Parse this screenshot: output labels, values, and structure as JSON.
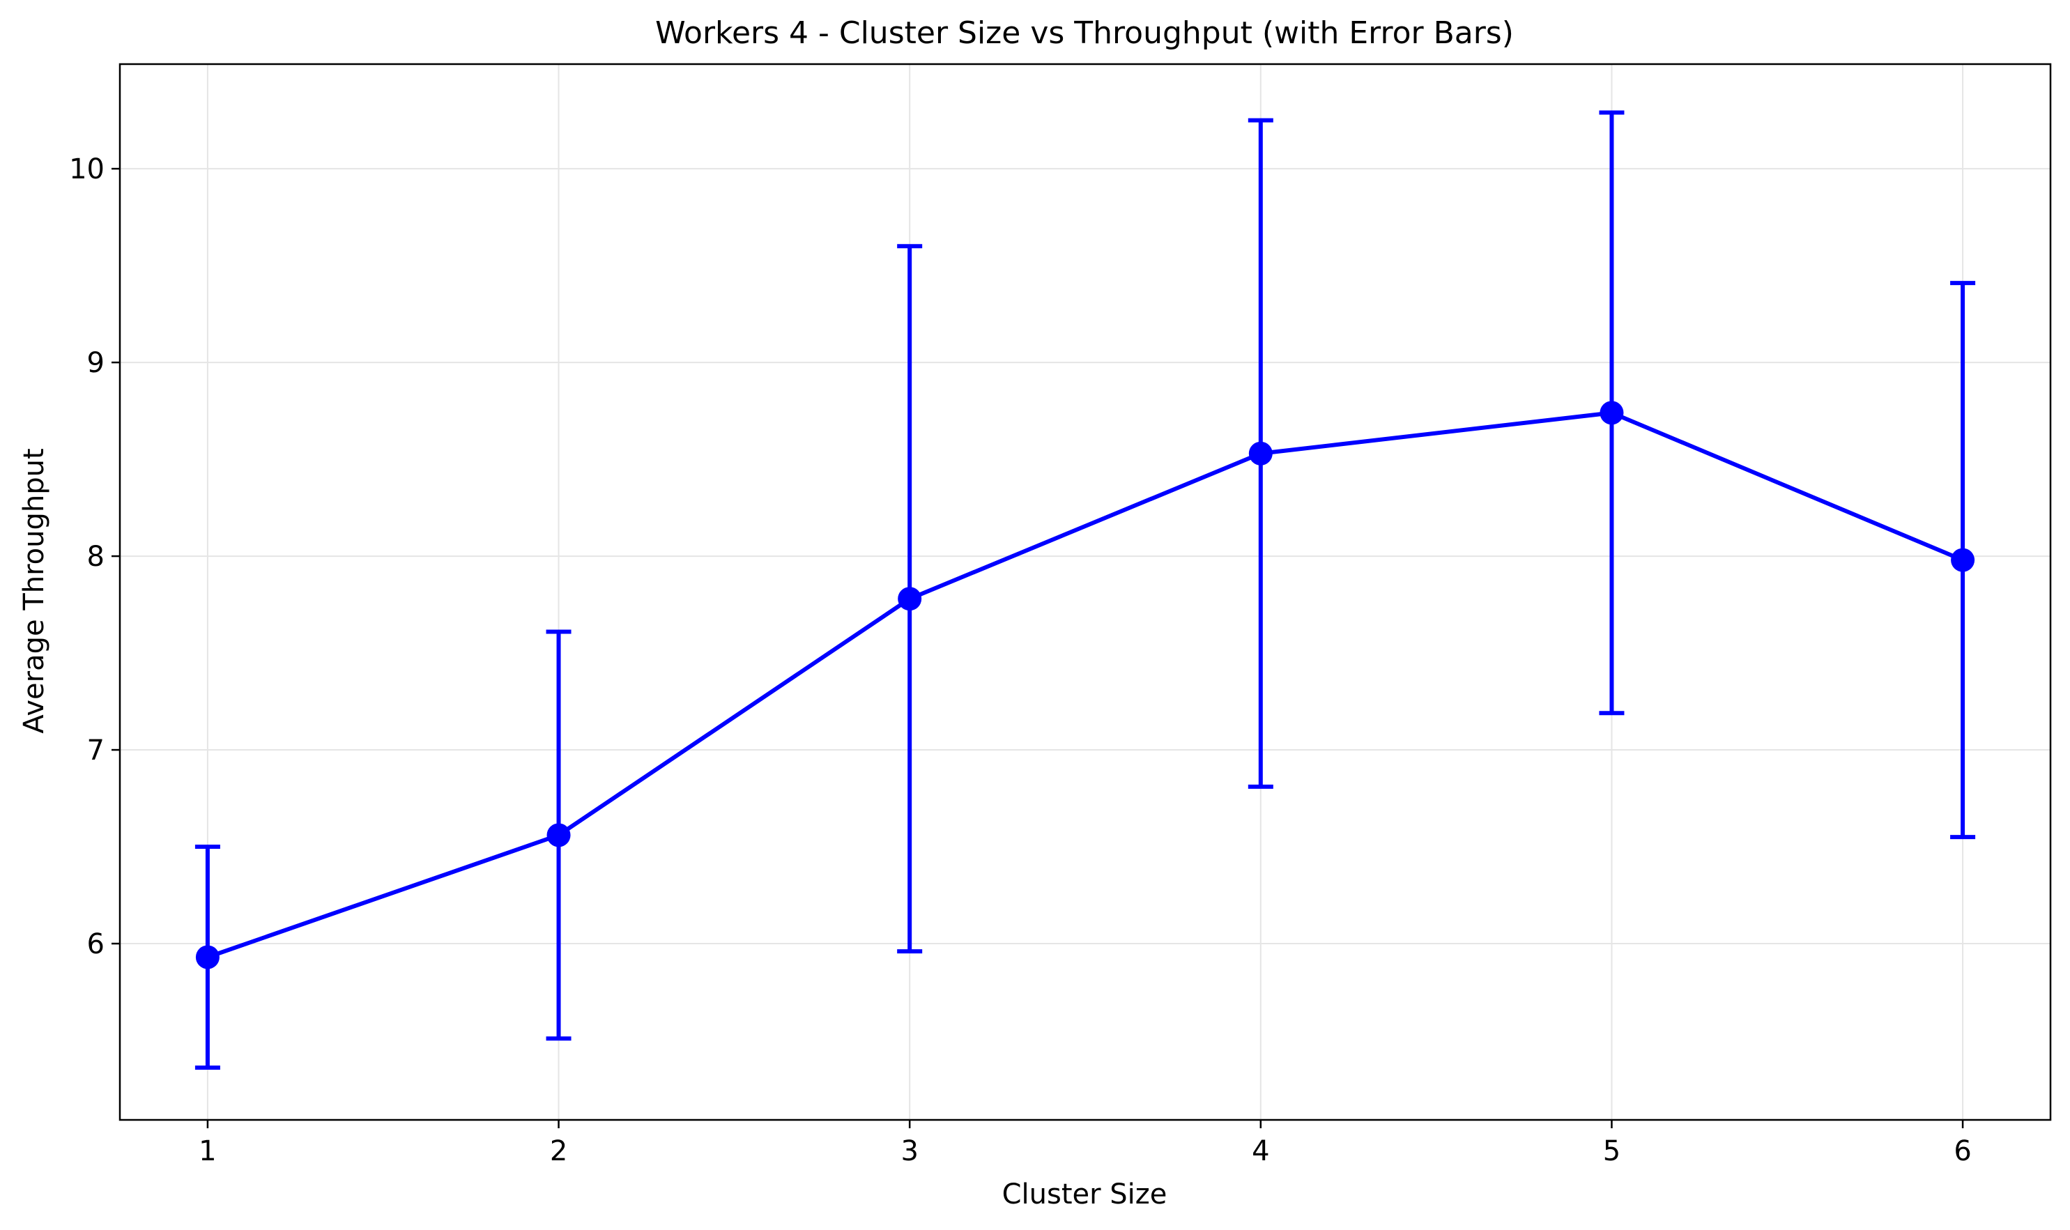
{
  "chart_data": {
    "type": "line",
    "title": "Workers 4 - Cluster Size vs Throughput (with Error Bars)",
    "xlabel": "Cluster Size",
    "ylabel": "Average Throughput",
    "x": [
      1,
      2,
      3,
      4,
      5,
      6
    ],
    "xticks": [
      "1",
      "2",
      "3",
      "4",
      "5",
      "6"
    ],
    "yticks": [
      "6",
      "7",
      "8",
      "9",
      "10"
    ],
    "xlim": [
      0.75,
      6.25
    ],
    "ylim": [
      5.09,
      10.54
    ],
    "grid": true,
    "series": [
      {
        "values": [
          5.93,
          6.56,
          7.78,
          8.53,
          8.74,
          7.98
        ],
        "error": [
          0.57,
          1.05,
          1.82,
          1.72,
          1.55,
          1.43
        ],
        "color": "#0000ff"
      }
    ]
  }
}
